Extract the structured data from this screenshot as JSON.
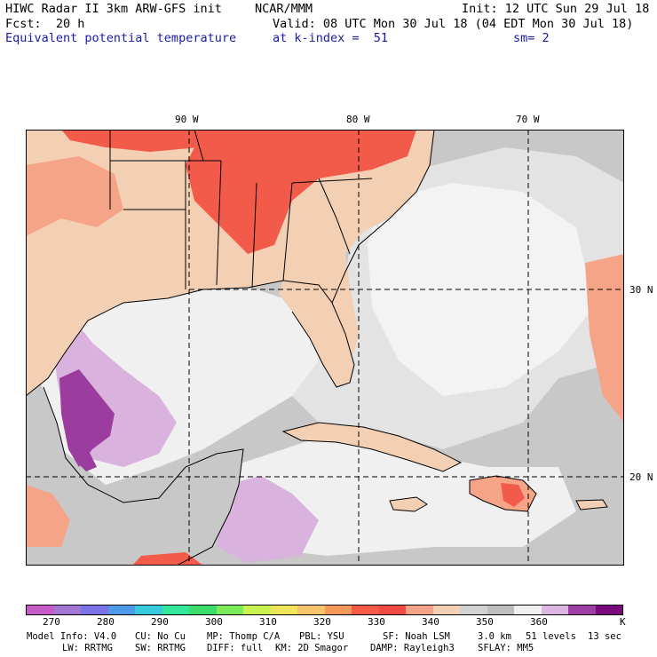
{
  "header": {
    "line1_left": "HIWC Radar II 3km ARW-GFS init",
    "line1_mid": "NCAR/MMM",
    "line1_right": "Init: 12 UTC Sun 29 Jul 18",
    "fcst": "Fcst:  20 h",
    "valid": "Valid: 08 UTC Mon 30 Jul 18 (04 EDT Mon 30 Jul 18)",
    "field": "Equivalent potential temperature",
    "level": "at k-index =  51",
    "smooth": "sm= 2"
  },
  "map": {
    "lon_labels": [
      "90 W",
      "80 W",
      "70 W"
    ],
    "lat_labels": [
      "30 N",
      "20 N"
    ],
    "colors": {
      "red": "#f25a4a",
      "salmon": "#f5a487",
      "peach": "#f3cfb4",
      "gray": "#c8c8c8",
      "light": "#e3e3e3",
      "white": "#f3f3f3",
      "lilac": "#d9b2de",
      "purple": "#9b3c9e"
    }
  },
  "colorbar": {
    "colors": [
      "#c85ac8",
      "#a076d2",
      "#7a72e6",
      "#4c9ae8",
      "#38c9dc",
      "#34e69a",
      "#3adc6a",
      "#7aea58",
      "#c8f250",
      "#f0e45a",
      "#f6c46a",
      "#f59858",
      "#f55a44",
      "#f04a42",
      "#f5a487",
      "#f3cfb4",
      "#d2d2d2",
      "#bebebe",
      "#f0f0f0",
      "#deb6e4",
      "#9e3ea4",
      "#7a0a7e"
    ],
    "ticks": [
      "270",
      "280",
      "290",
      "300",
      "310",
      "320",
      "330",
      "340",
      "350",
      "360"
    ],
    "unit": "K"
  },
  "model_info": {
    "line1": [
      "Model Info: V4.0",
      "CU: No Cu",
      "MP: Thomp C/A",
      "PBL: YSU",
      "SF: Noah LSM",
      "3.0 km",
      "51 levels",
      "13 sec"
    ],
    "line2": [
      "LW: RRTMG",
      "SW: RRTMG",
      "DIFF: full",
      "KM: 2D Smagor",
      "DAMP: Rayleigh3",
      "SFLAY: MM5"
    ]
  }
}
